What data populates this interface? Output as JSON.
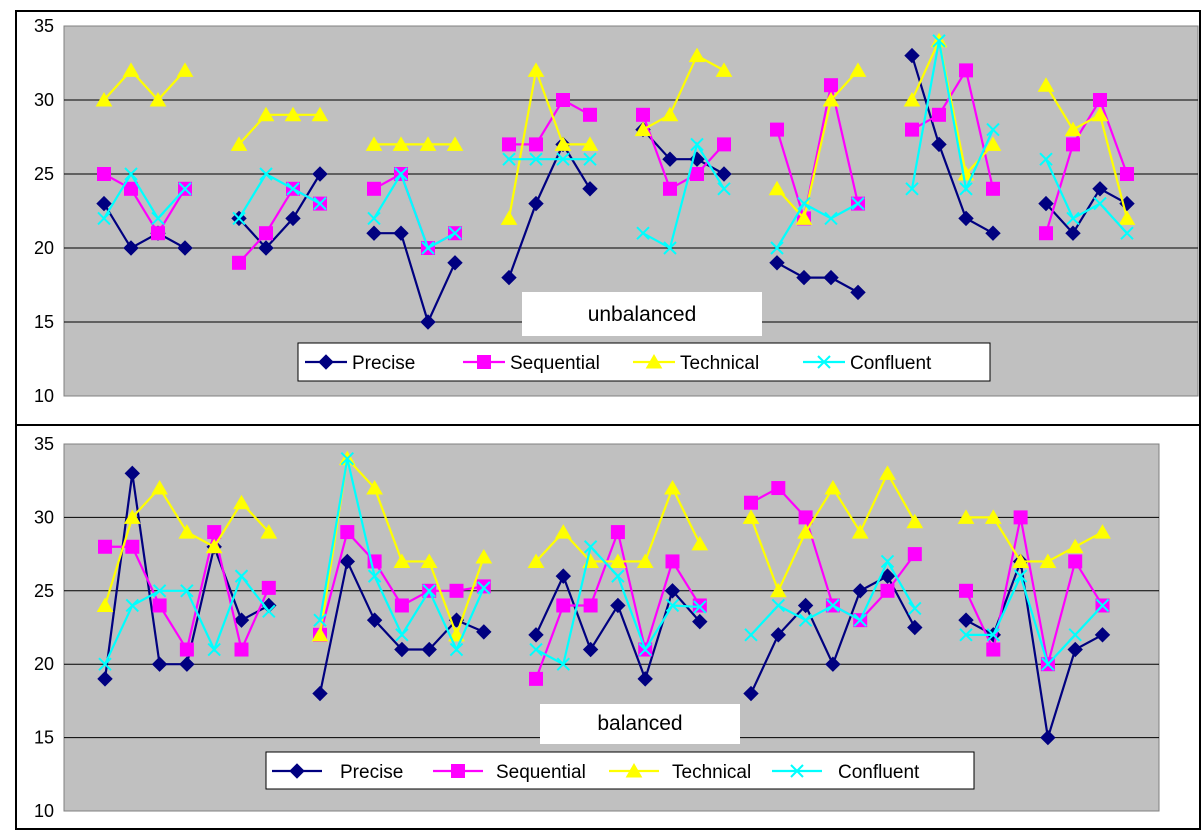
{
  "colors": {
    "plot_background": "#C0C0C0",
    "gridline": "#000000",
    "Precise": "#000080",
    "Sequential": "#FF00FF",
    "Technical": "#FFFF00",
    "Confluent": "#00FFFF"
  },
  "chart_data": [
    {
      "type": "line",
      "title": "unbalanced",
      "ylim": [
        10,
        35
      ],
      "yticks": [
        10,
        15,
        20,
        25,
        30,
        35
      ],
      "grid": true,
      "legend_position": "bottom-center",
      "groups": 8,
      "points_per_group": 4,
      "series": [
        {
          "name": "Precise",
          "marker": "diamond",
          "groups": [
            [
              23,
              20,
              21,
              20
            ],
            [
              22,
              20,
              22,
              25
            ],
            [
              21,
              21,
              15,
              19
            ],
            [
              18,
              23,
              27,
              24
            ],
            [
              28,
              26,
              26,
              25
            ],
            [
              19,
              18,
              18,
              17
            ],
            [
              33,
              27,
              22,
              21
            ],
            [
              23,
              21,
              24,
              23
            ]
          ]
        },
        {
          "name": "Sequential",
          "marker": "square",
          "groups": [
            [
              25,
              24,
              21,
              24
            ],
            [
              19,
              21,
              24,
              23
            ],
            [
              24,
              25,
              20,
              21
            ],
            [
              27,
              27,
              30,
              29
            ],
            [
              29,
              24,
              25,
              27
            ],
            [
              28,
              22,
              31,
              23
            ],
            [
              28,
              29,
              32,
              24
            ],
            [
              21,
              27,
              30,
              25
            ]
          ]
        },
        {
          "name": "Technical",
          "marker": "triangle",
          "groups": [
            [
              30,
              32,
              30,
              32
            ],
            [
              27,
              29,
              29,
              29
            ],
            [
              27,
              27,
              27,
              27
            ],
            [
              22,
              32,
              27,
              27
            ],
            [
              28,
              29,
              33,
              32
            ],
            [
              24,
              22,
              30,
              32
            ],
            [
              30,
              34,
              25,
              27
            ],
            [
              31,
              28,
              29,
              22
            ]
          ]
        },
        {
          "name": "Confluent",
          "marker": "x",
          "groups": [
            [
              22,
              25,
              22,
              24
            ],
            [
              22,
              25,
              24,
              23
            ],
            [
              22,
              25,
              20,
              21
            ],
            [
              26,
              26,
              26,
              26
            ],
            [
              21,
              20,
              27,
              24
            ],
            [
              20,
              23,
              22,
              23
            ],
            [
              24,
              34,
              24,
              28
            ],
            [
              26,
              22,
              23,
              21
            ]
          ]
        }
      ]
    },
    {
      "type": "line",
      "title": "balanced",
      "ylim": [
        10,
        35
      ],
      "yticks": [
        10,
        15,
        20,
        25,
        30,
        35
      ],
      "grid": true,
      "legend_position": "bottom-center",
      "groups": 5,
      "points_per_group": 6,
      "series": [
        {
          "name": "Precise",
          "marker": "diamond",
          "groups": [
            [
              19,
              33,
              20,
              20,
              28,
              23,
              24
            ],
            [
              18,
              27,
              23,
              21,
              21,
              23,
              22.2
            ],
            [
              22,
              26,
              21,
              24,
              19,
              25,
              22.9
            ],
            [
              18,
              22,
              24,
              20,
              25,
              26,
              22.5
            ],
            [
              23,
              22,
              27,
              15,
              21,
              22
            ]
          ]
        },
        {
          "name": "Sequential",
          "marker": "square",
          "groups": [
            [
              28,
              28,
              24,
              21,
              29,
              21,
              25.2
            ],
            [
              22,
              29,
              27,
              24,
              25,
              25,
              25.3
            ],
            [
              19,
              24,
              24,
              29,
              21,
              27,
              24
            ],
            [
              31,
              32,
              30,
              24,
              23,
              25,
              27.5
            ],
            [
              25,
              21,
              30,
              20,
              27,
              24
            ]
          ]
        },
        {
          "name": "Technical",
          "marker": "triangle",
          "groups": [
            [
              24,
              30,
              32,
              29,
              28,
              31,
              29
            ],
            [
              22,
              34,
              32,
              27,
              27,
              22,
              27.3
            ],
            [
              27,
              29,
              27,
              27,
              27,
              32,
              28.2
            ],
            [
              30,
              25,
              29,
              32,
              29,
              33,
              29.7
            ],
            [
              30,
              30,
              27,
              27,
              28,
              29
            ]
          ]
        },
        {
          "name": "Confluent",
          "marker": "x",
          "groups": [
            [
              20,
              24,
              25,
              25,
              21,
              26,
              23.6
            ],
            [
              23,
              34,
              26,
              22,
              25,
              21,
              25.2
            ],
            [
              21,
              20,
              28,
              26,
              21,
              24,
              23.9
            ],
            [
              22,
              24,
              23,
              24,
              23,
              27,
              23.8
            ],
            [
              22,
              22,
              26,
              20,
              22,
              24
            ]
          ]
        }
      ]
    }
  ]
}
